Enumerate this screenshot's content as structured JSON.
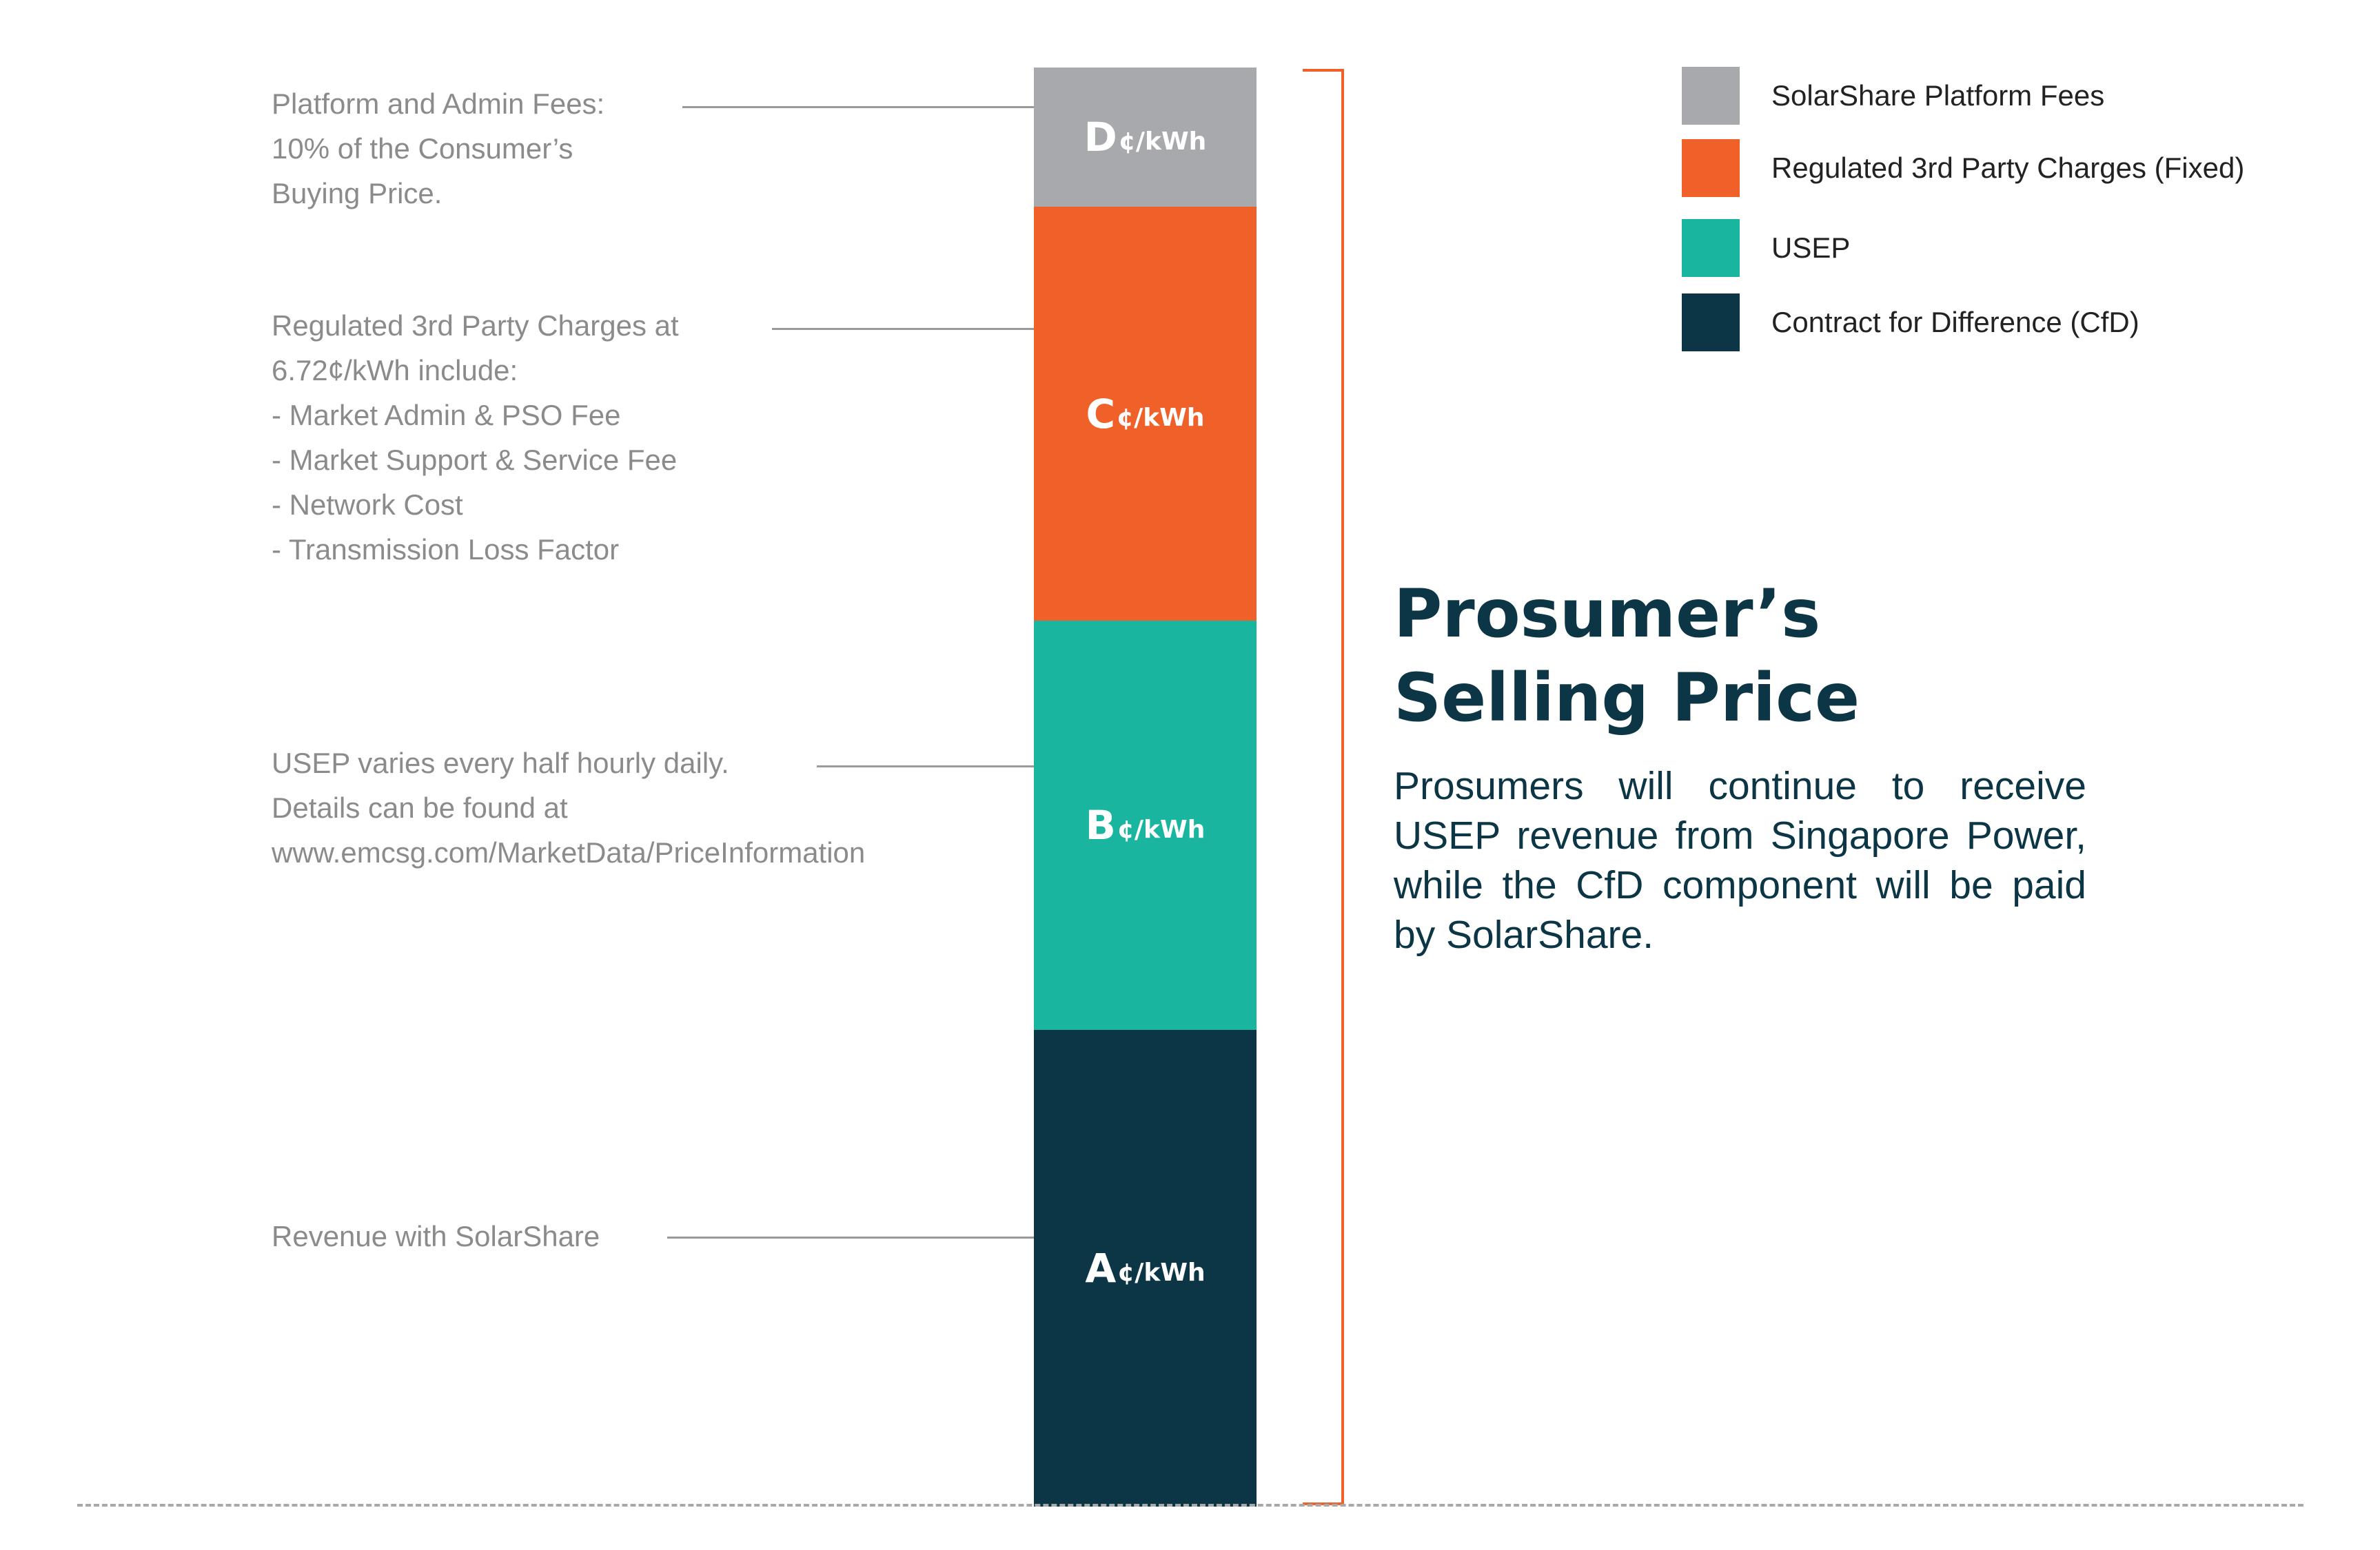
{
  "colors": {
    "platform_fees": "#a8a9ad",
    "regulated_charges": "#f0612a",
    "usep": "#1ab59e",
    "cfd": "#0c3646",
    "bracket": "#f0612a",
    "annotation_text": "#8b8b8b"
  },
  "annotations": {
    "platform": [
      "Platform and Admin Fees:",
      "10% of the Consumer’s",
      "Buying Price."
    ],
    "regulated": [
      "Regulated 3rd Party Charges at",
      "6.72¢/kWh include:",
      "- Market Admin & PSO Fee",
      "- Market Support & Service Fee",
      "- Network Cost",
      "- Transmission Loss Factor"
    ],
    "usep": [
      "USEP varies every half hourly daily.",
      "Details can be found at",
      "www.emcsg.com/MarketData/PriceInformation"
    ],
    "revenue": [
      "Revenue with SolarShare"
    ]
  },
  "bar": {
    "segments": [
      {
        "letter": "D",
        "unit": "¢/kWh"
      },
      {
        "letter": "C",
        "unit": "¢/kWh"
      },
      {
        "letter": "B",
        "unit": "¢/kWh"
      },
      {
        "letter": "A",
        "unit": "¢/kWh"
      }
    ]
  },
  "heading": {
    "line1": "Prosumer’s",
    "line2": "Selling Price"
  },
  "body_text": "Prosumers will continue to receive USEP revenue from Singapore Power, while the CfD component will be paid by SolarShare.",
  "legend": [
    {
      "label": "SolarShare Platform Fees"
    },
    {
      "label": "Regulated 3rd Party Charges (Fixed)"
    },
    {
      "label": "USEP"
    },
    {
      "label": "Contract for Difference (CfD)"
    }
  ]
}
